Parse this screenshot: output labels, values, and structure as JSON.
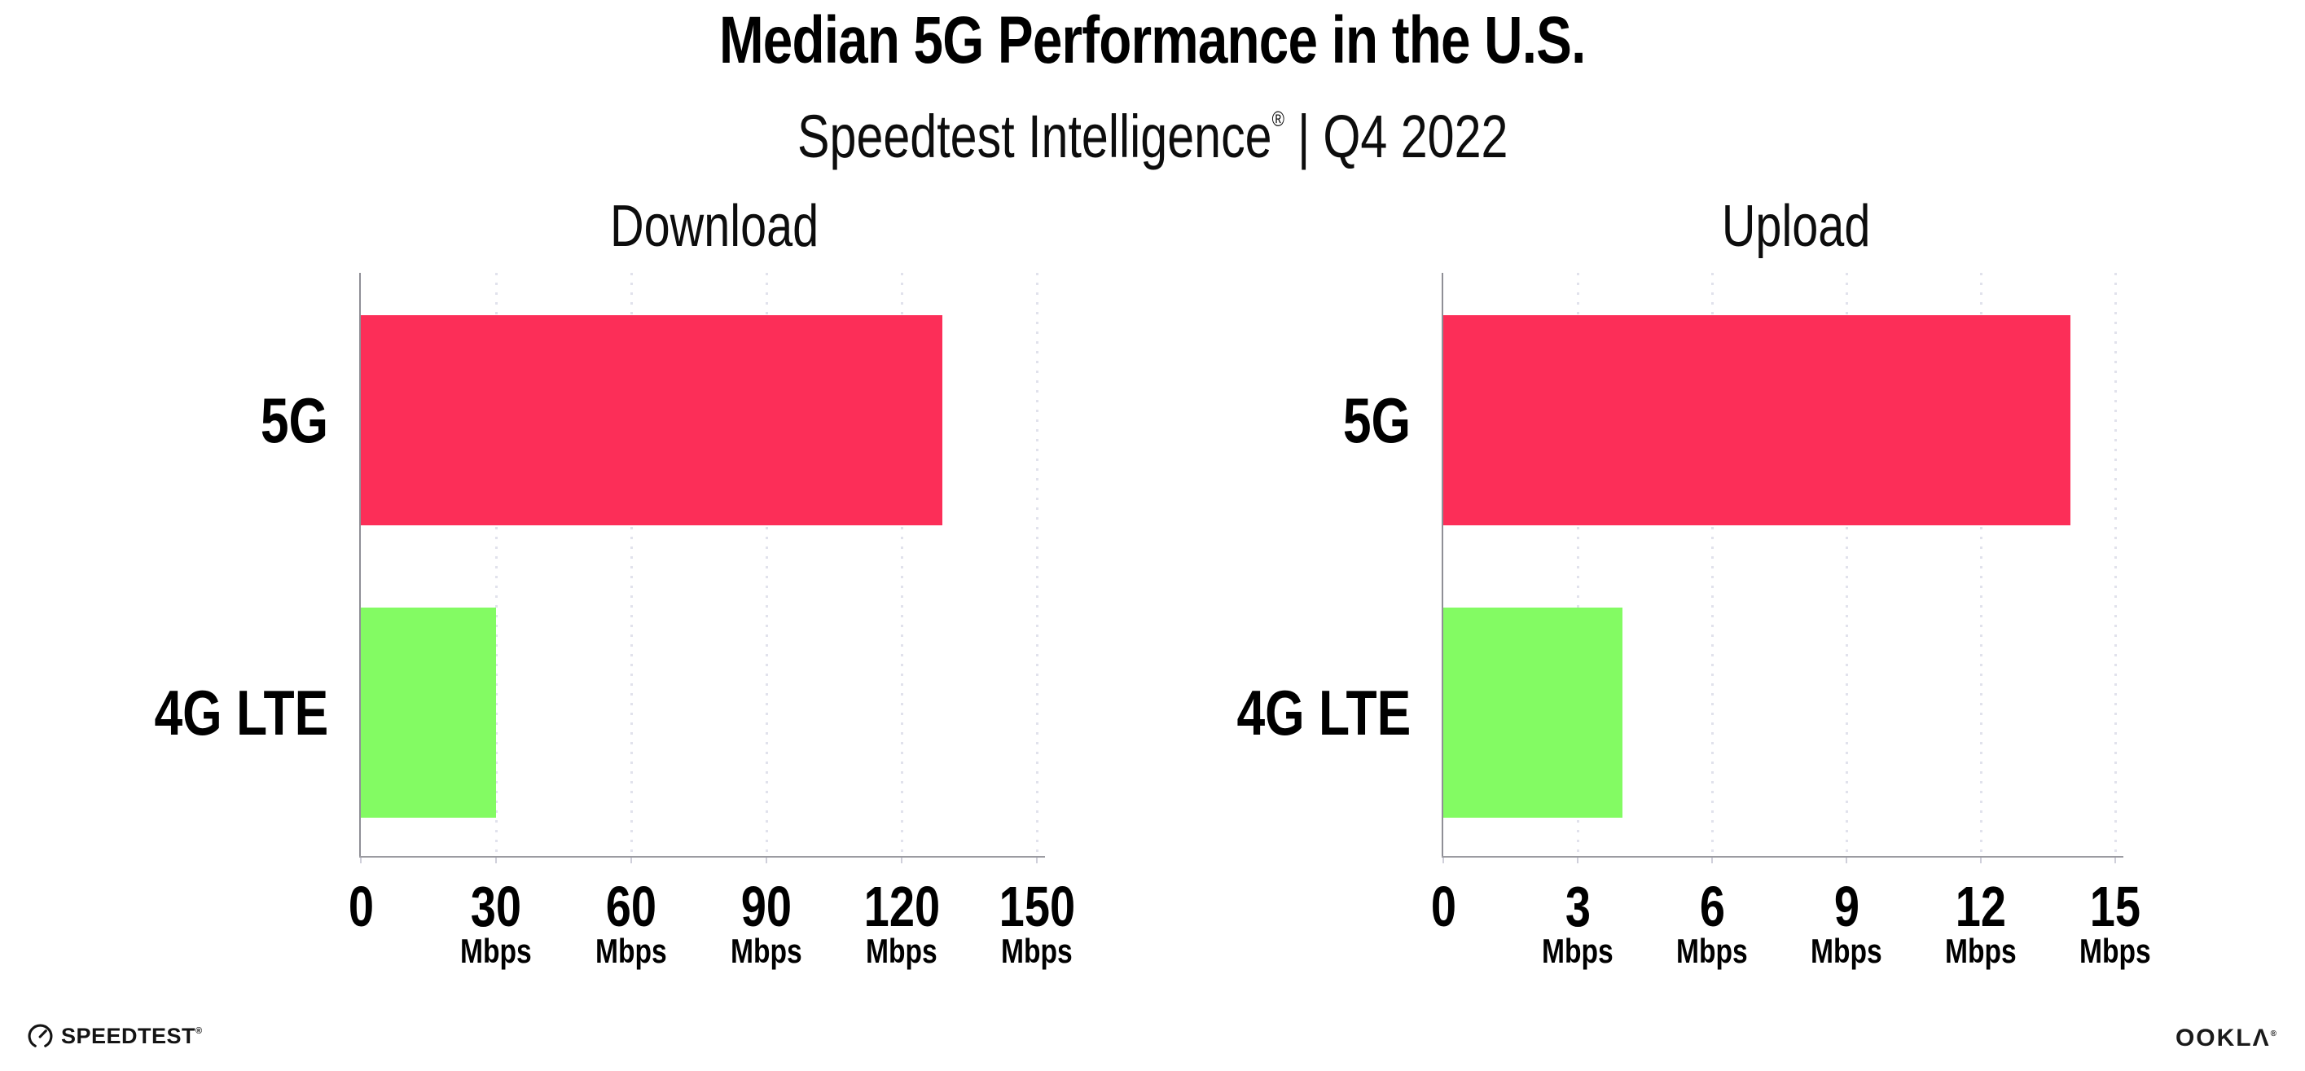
{
  "header": {
    "title": "Median 5G Performance in the U.S.",
    "subtitle": {
      "product": "Speedtest Intelligence",
      "registered": "®",
      "separator": "|",
      "period": "Q4 2022"
    }
  },
  "chart_data": [
    {
      "type": "bar",
      "orientation": "horizontal",
      "title": "Download",
      "categories": [
        "5G",
        "4G LTE"
      ],
      "values": [
        129,
        30
      ],
      "unit": "Mbps",
      "xlim": [
        0,
        150
      ],
      "xticks": [
        0,
        30,
        60,
        90,
        120,
        150
      ],
      "grid": "vertical-dotted",
      "bar_colors": [
        "#fc2e58",
        "#83fb63"
      ]
    },
    {
      "type": "bar",
      "orientation": "horizontal",
      "title": "Upload",
      "categories": [
        "5G",
        "4G LTE"
      ],
      "values": [
        14,
        4
      ],
      "unit": "Mbps",
      "xlim": [
        0,
        15
      ],
      "xticks": [
        0,
        3,
        6,
        9,
        12,
        15
      ],
      "grid": "vertical-dotted",
      "bar_colors": [
        "#fc2e58",
        "#83fb63"
      ]
    }
  ],
  "footer": {
    "speedtest_logo": "SPEEDTEST",
    "speedtest_registered": "®",
    "ookla_logo": "OOKLΛ",
    "ookla_registered": "®"
  },
  "colors": {
    "bar_5g": "#fc2e58",
    "bar_4g_lte": "#83fb63",
    "gridline": "#e1e2ec",
    "axis": "#9b9ba1",
    "text": "#000000"
  }
}
